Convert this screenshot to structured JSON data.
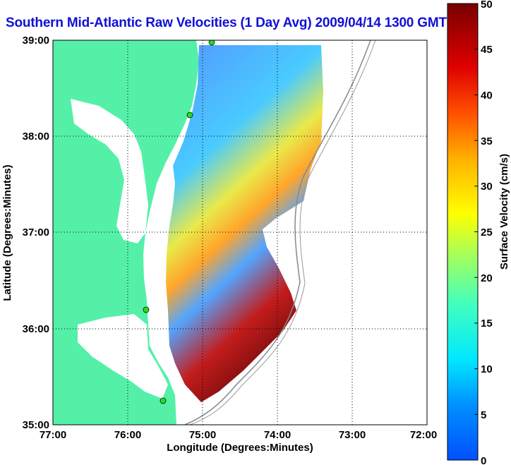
{
  "title": "Southern Mid-Atlantic Raw Velocities (1 Day Avg) 2009/04/14 1300 GMT",
  "xlabel": "Longitude (Degrees:Minutes)",
  "ylabel": "Latitude (Degrees:Minutes)",
  "colorbar": {
    "label": "Surface Velocity (cm/s)",
    "ticks": [
      "0",
      "5",
      "10",
      "15",
      "20",
      "25",
      "30",
      "35",
      "40",
      "45",
      "50"
    ],
    "min": 0,
    "max": 50
  },
  "axes": {
    "lon_ticks": [
      "77:00",
      "76:00",
      "75:00",
      "74:00",
      "73:00",
      "72:00"
    ],
    "lat_ticks": [
      "39:00",
      "38:00",
      "37:00",
      "36:00",
      "35:00"
    ],
    "lon_range": [
      -77,
      -72
    ],
    "lat_range": [
      35,
      39
    ],
    "grid": "dotted"
  },
  "colors": {
    "land": "#55f0a8",
    "title": "#1010d8",
    "stations": "#22dd22"
  }
}
